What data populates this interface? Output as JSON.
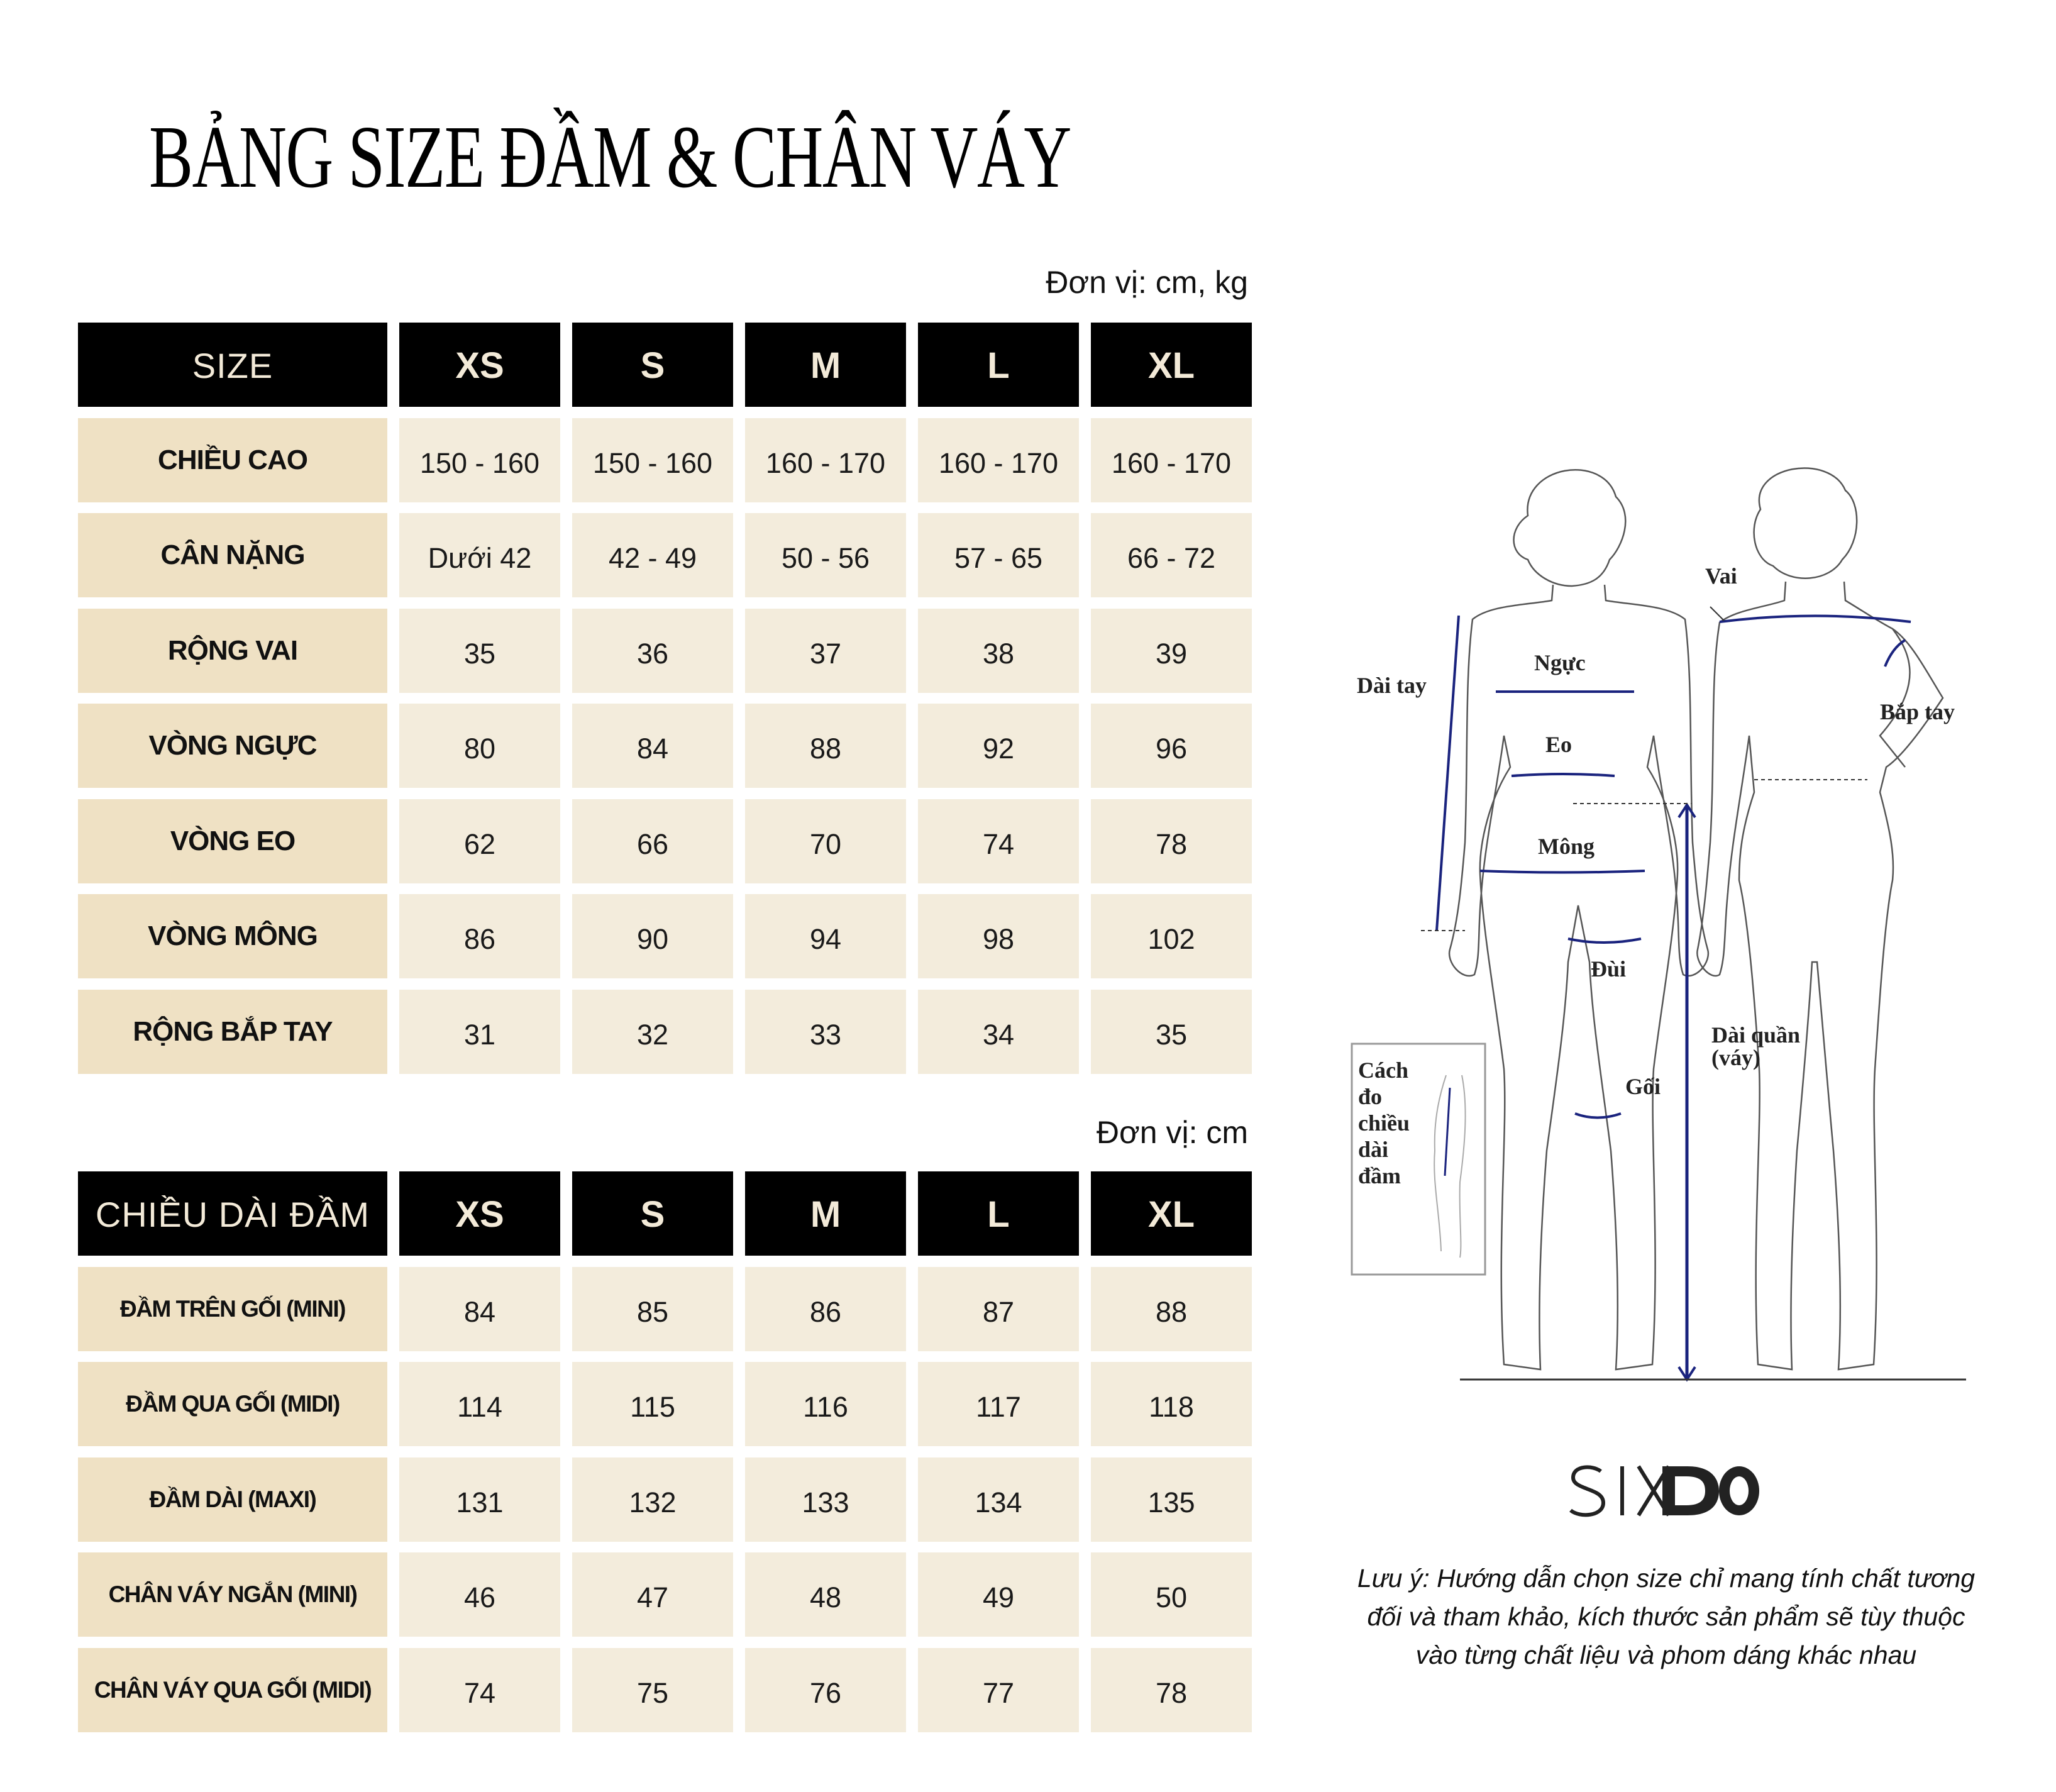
{
  "title": "BẢNG SIZE ĐẦM & CHÂN VÁY",
  "table1": {
    "unit": "Đơn vị: cm, kg",
    "headers": [
      "SIZE",
      "XS",
      "S",
      "M",
      "L",
      "XL"
    ],
    "rows": [
      {
        "label": "CHIỀU CAO",
        "values": [
          "150 - 160",
          "150 - 160",
          "160 - 170",
          "160 - 170",
          "160 - 170"
        ]
      },
      {
        "label": "CÂN NẶNG",
        "values": [
          "Dưới 42",
          "42 - 49",
          "50 - 56",
          "57 - 65",
          "66 - 72"
        ]
      },
      {
        "label": "RỘNG VAI",
        "values": [
          "35",
          "36",
          "37",
          "38",
          "39"
        ]
      },
      {
        "label": "VÒNG NGỰC",
        "values": [
          "80",
          "84",
          "88",
          "92",
          "96"
        ]
      },
      {
        "label": "VÒNG EO",
        "values": [
          "62",
          "66",
          "70",
          "74",
          "78"
        ]
      },
      {
        "label": "VÒNG MÔNG",
        "values": [
          "86",
          "90",
          "94",
          "98",
          "102"
        ]
      },
      {
        "label": "RỘNG BẮP TAY",
        "values": [
          "31",
          "32",
          "33",
          "34",
          "35"
        ]
      }
    ]
  },
  "table2": {
    "unit": "Đơn vị: cm",
    "headers": [
      "CHIỀU DÀI ĐẦM",
      "XS",
      "S",
      "M",
      "L",
      "XL"
    ],
    "rows": [
      {
        "label": "ĐẦM TRÊN GỐI (MINI)",
        "values": [
          "84",
          "85",
          "86",
          "87",
          "88"
        ]
      },
      {
        "label": "ĐẦM QUA GỐI (MIDI)",
        "values": [
          "114",
          "115",
          "116",
          "117",
          "118"
        ]
      },
      {
        "label": "ĐẦM DÀI (MAXI)",
        "values": [
          "131",
          "132",
          "133",
          "134",
          "135"
        ]
      },
      {
        "label": "CHÂN VÁY NGẮN (MINI)",
        "values": [
          "46",
          "47",
          "48",
          "49",
          "50"
        ]
      },
      {
        "label": "CHÂN VÁY QUA GỐI (MIDI)",
        "values": [
          "74",
          "75",
          "76",
          "77",
          "78"
        ]
      }
    ]
  },
  "diagram": {
    "labels": {
      "vai": "Vai",
      "nguc": "Ngực",
      "dai_tay": "Dài tay",
      "bap_tay": "Bắp tay",
      "eo": "Eo",
      "mong": "Mông",
      "dui": "Đùi",
      "dai_quan": "Dài quần",
      "vay": "(váy)",
      "goi": "Gối"
    },
    "inset_lines": [
      "Cách",
      "đo",
      "chiều",
      "dài",
      "đầm"
    ],
    "measure_color": "#1a237e"
  },
  "logo": "SIXDO",
  "note_lines": [
    "Lưu ý: Hướng dẫn chọn size chỉ mang tính chất tương",
    "đối và tham khảo, kích thước sản phẩm sẽ tùy thuộc",
    "vào từng chất liệu và phom dáng khác nhau"
  ],
  "colors": {
    "header_bg": "#000000",
    "header_text": "#f3ead8",
    "label_bg": "#efe1c4",
    "value_bg": "#f3ecdc"
  }
}
